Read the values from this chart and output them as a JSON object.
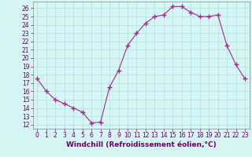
{
  "x": [
    0,
    1,
    2,
    3,
    4,
    5,
    6,
    7,
    8,
    9,
    10,
    11,
    12,
    13,
    14,
    15,
    16,
    17,
    18,
    19,
    20,
    21,
    22,
    23
  ],
  "y": [
    17.5,
    16.0,
    15.0,
    14.5,
    14.0,
    13.5,
    12.2,
    12.3,
    16.5,
    18.5,
    21.5,
    23.0,
    24.2,
    25.0,
    25.2,
    26.2,
    26.2,
    25.5,
    25.0,
    25.0,
    25.2,
    21.5,
    19.2,
    17.5
  ],
  "line_color": "#9b2d8e",
  "marker": "+",
  "marker_size": 4,
  "marker_lw": 1.0,
  "background_color": "#d6f5f5",
  "grid_color": "#b0e0e0",
  "xlabel": "Windchill (Refroidissement éolien,°C)",
  "xlim": [
    -0.5,
    23.5
  ],
  "ylim": [
    11.5,
    26.8
  ],
  "yticks": [
    12,
    13,
    14,
    15,
    16,
    17,
    18,
    19,
    20,
    21,
    22,
    23,
    24,
    25,
    26
  ],
  "xticks": [
    0,
    1,
    2,
    3,
    4,
    5,
    6,
    7,
    8,
    9,
    10,
    11,
    12,
    13,
    14,
    15,
    16,
    17,
    18,
    19,
    20,
    21,
    22,
    23
  ],
  "xlabel_fontsize": 6.5,
  "tick_fontsize": 5.5,
  "linewidth": 0.8
}
